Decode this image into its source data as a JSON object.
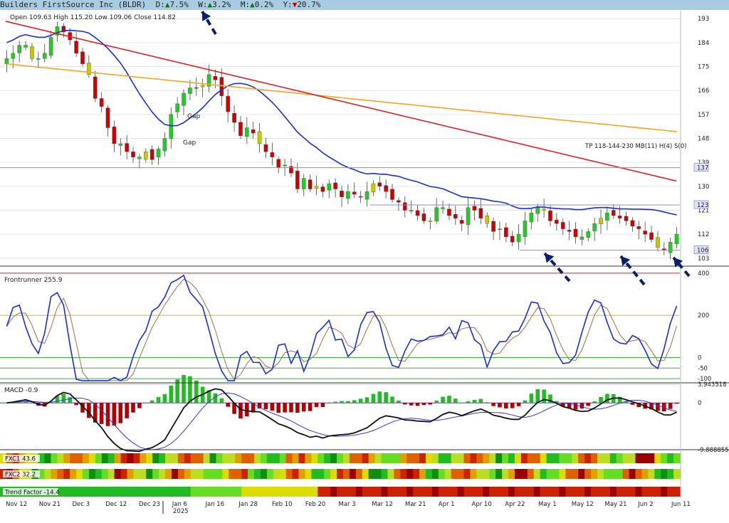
{
  "header": {
    "symbol_title": "Builders FirstSource Inc (BLDR)",
    "perf": [
      {
        "label": "D:",
        "arrow": "▲",
        "value": "7.5%",
        "dir": "up"
      },
      {
        "label": "W:",
        "arrow": "▲",
        "value": "3.2%",
        "dir": "up"
      },
      {
        "label": "M:",
        "arrow": "▲",
        "value": "0.2%",
        "dir": "up"
      },
      {
        "label": "Y:",
        "arrow": "▼",
        "value": "20.7%",
        "dir": "down"
      }
    ]
  },
  "ohlc_label": "Open 109.63  High 115.20  Low 109.06  Close 114.82",
  "colors": {
    "up_green": "#22cc22",
    "yellow": "#c8c800",
    "red": "#cc0000",
    "ma_blue": "#1a2fd6",
    "ma_orange": "#f5a623",
    "trend_red": "#e02020",
    "arrow_navy": "#0a1e6e",
    "hline": "#8a8ae0"
  },
  "chart_data": [
    {
      "type": "candlestick",
      "panel": "price",
      "ylim": [
        100,
        196
      ],
      "y_ticks": [
        "193",
        "184",
        "175",
        "166",
        "157",
        "148",
        "139",
        "130",
        "121",
        "112",
        "103"
      ],
      "price_labels": [
        "137",
        "123",
        "106"
      ],
      "annotations": [
        "Gap",
        "Gap",
        "TP 118-144-230 MB(11) H(4) S(0)"
      ],
      "x_labels": [
        "Nov 12",
        "Nov 21",
        "Dec 3",
        "Dec 12",
        "Dec 23",
        "Jan 6",
        "Jan 16",
        "Jan 28",
        "Feb 10",
        "Feb 20",
        "Mar 3",
        "Mar 12",
        "Mar 21",
        "Apr 1",
        "Apr 10",
        "Apr 22",
        "May 1",
        "May 12",
        "May 21",
        "Jun 2",
        "Jun 11"
      ],
      "year_label": "2025",
      "close_path": [
        178,
        180,
        183,
        183,
        178,
        178,
        180,
        186,
        190,
        188,
        185,
        180,
        176,
        172,
        163,
        160,
        152,
        146,
        146,
        143,
        141,
        141,
        143,
        140,
        144,
        148,
        157,
        161,
        165,
        167,
        167,
        168,
        172,
        170,
        164,
        158,
        154,
        149,
        152,
        150,
        146,
        143,
        141,
        137,
        138,
        135,
        129,
        133,
        129,
        130,
        128,
        131,
        129,
        126,
        128,
        127,
        126,
        128,
        131,
        130,
        128,
        125,
        124,
        121,
        121,
        119,
        117,
        117,
        122,
        122,
        119,
        118,
        116,
        122,
        121,
        118,
        116,
        113,
        114,
        111,
        109,
        112,
        117,
        120,
        122,
        121,
        117,
        116,
        114,
        113,
        111,
        111,
        113,
        116,
        118,
        120,
        119,
        118,
        117,
        115,
        114,
        112,
        110,
        107,
        106,
        109,
        112
      ]
    },
    {
      "type": "line",
      "panel": "oscillator",
      "title": "Frontrunner 255.9",
      "y_ticks": [
        "400",
        "200",
        "0",
        "-50",
        "-100"
      ],
      "ylim": [
        -120,
        420
      ]
    },
    {
      "type": "histogram+line",
      "panel": "macd",
      "title": "MACD -0.9",
      "y_ticks": [
        "3.943518",
        "0",
        "-9.888855"
      ],
      "ylim": [
        -9.888855,
        3.943518
      ]
    },
    {
      "type": "heatmap",
      "panel": "strips",
      "rows": [
        "FXC1 43.6",
        "FXC2 32.2",
        "Trend Factor -14.4"
      ]
    }
  ]
}
